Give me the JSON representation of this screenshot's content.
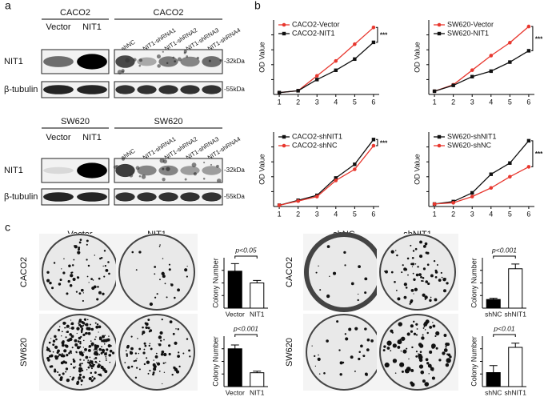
{
  "panel_labels": [
    "a",
    "b",
    "c"
  ],
  "blots": [
    {
      "cell_line": "CACO2",
      "lanes": [
        "Vector",
        "NIT1"
      ]
    },
    {
      "cell_line": "CACO2",
      "lanes": [
        "shNC",
        "NIT1-shRNA1",
        "NIT1-shRNA2",
        "NIT1-shRNA3",
        "NIT1-shRNA4"
      ]
    },
    {
      "cell_line": "SW620",
      "lanes": [
        "Vector",
        "NIT1"
      ]
    },
    {
      "cell_line": "SW620",
      "lanes": [
        "shNC",
        "NIT1-shRNA1",
        "NIT1-shRNA2",
        "NIT1-shRNA3",
        "NIT1-shRNA4"
      ]
    }
  ],
  "blot_rows": [
    "NIT1",
    "β-tubulin"
  ],
  "markers": [
    "-32kDa",
    "-55kDa"
  ],
  "chart_data": [
    {
      "type": "line",
      "ylabel": "OD Value",
      "x": [
        1,
        2,
        3,
        4,
        5,
        6
      ],
      "xticks": [
        1,
        2,
        3,
        4,
        5,
        6
      ],
      "xlim": [
        0.7,
        6.3
      ],
      "ylim": [
        0,
        2
      ],
      "annotation": "***",
      "series": [
        {
          "name": "CACO2-Vector",
          "color": "#e8382f",
          "marker": "circle",
          "values": [
            0.05,
            0.1,
            0.5,
            0.9,
            1.35,
            1.8
          ]
        },
        {
          "name": "CACO2-NIT1",
          "color": "#111111",
          "marker": "square",
          "values": [
            0.05,
            0.1,
            0.4,
            0.65,
            0.95,
            1.4
          ]
        }
      ]
    },
    {
      "type": "line",
      "ylabel": "OD Value",
      "x": [
        1,
        2,
        3,
        4,
        5,
        6
      ],
      "xticks": [
        1,
        2,
        3,
        4,
        5,
        6
      ],
      "xlim": [
        0.7,
        6.3
      ],
      "ylim": [
        0,
        2.3
      ],
      "annotation": "***",
      "series": [
        {
          "name": "SW620-Vector",
          "color": "#e8382f",
          "marker": "circle",
          "values": [
            0.1,
            0.3,
            0.75,
            1.2,
            1.6,
            2.1
          ]
        },
        {
          "name": "SW620-NIT1",
          "color": "#111111",
          "marker": "square",
          "values": [
            0.1,
            0.28,
            0.55,
            0.72,
            1.0,
            1.35
          ]
        }
      ]
    },
    {
      "type": "line",
      "ylabel": "OD Value",
      "x": [
        1,
        2,
        3,
        4,
        5,
        6
      ],
      "xticks": [
        1,
        2,
        3,
        4,
        5,
        6
      ],
      "xlim": [
        0.7,
        6.3
      ],
      "ylim": [
        0,
        3
      ],
      "annotation": "***",
      "series": [
        {
          "name": "CACO2-shNIT1",
          "color": "#111111",
          "marker": "square",
          "values": [
            0.05,
            0.25,
            0.45,
            1.15,
            1.7,
            2.7
          ]
        },
        {
          "name": "CACO2-shNC",
          "color": "#e8382f",
          "marker": "circle",
          "values": [
            0.05,
            0.22,
            0.4,
            1.05,
            1.5,
            2.45
          ]
        }
      ]
    },
    {
      "type": "line",
      "ylabel": "OD Value",
      "x": [
        1,
        2,
        3,
        4,
        5,
        6
      ],
      "xticks": [
        1,
        2,
        3,
        4,
        5,
        6
      ],
      "xlim": [
        0.7,
        6.3
      ],
      "ylim": [
        0,
        3
      ],
      "annotation": "***",
      "series": [
        {
          "name": "SW620-shNIT1",
          "color": "#111111",
          "marker": "square",
          "values": [
            0.1,
            0.2,
            0.55,
            1.3,
            1.75,
            2.65
          ]
        },
        {
          "name": "SW620-shNC",
          "color": "#e8382f",
          "marker": "circle",
          "values": [
            0.1,
            0.15,
            0.4,
            0.75,
            1.2,
            1.6
          ]
        }
      ]
    },
    {
      "type": "bar",
      "ylabel": "Colony Number",
      "categories": [
        "Vector",
        "NIT1"
      ],
      "values": [
        220,
        150
      ],
      "errors": [
        45,
        15
      ],
      "colors": [
        "#000000",
        "#ffffff"
      ],
      "ylim": [
        0,
        300
      ],
      "annotation": "p<0.05"
    },
    {
      "type": "bar",
      "ylabel": "Colony Number",
      "categories": [
        "Vector",
        "NIT1"
      ],
      "values": [
        600,
        220
      ],
      "errors": [
        60,
        25
      ],
      "colors": [
        "#000000",
        "#ffffff"
      ],
      "ylim": [
        0,
        800
      ],
      "annotation": "p<0.001"
    },
    {
      "type": "bar",
      "ylabel": "Colony Number",
      "categories": [
        "shNC",
        "shNIT1"
      ],
      "values": [
        55,
        250
      ],
      "errors": [
        8,
        30
      ],
      "colors": [
        "#000000",
        "#ffffff"
      ],
      "ylim": [
        0,
        320
      ],
      "annotation": "p<0.001"
    },
    {
      "type": "bar",
      "ylabel": "Colony Number",
      "categories": [
        "shNC",
        "shNIT1"
      ],
      "values": [
        500,
        1400
      ],
      "errors": [
        250,
        150
      ],
      "colors": [
        "#000000",
        "#ffffff"
      ],
      "ylim": [
        0,
        1800
      ],
      "annotation": "p<0.01"
    }
  ],
  "dishes": {
    "columns": [
      "Vector",
      "NIT1",
      "shNC",
      "shNIT1"
    ],
    "rows": [
      "CACO2",
      "SW620"
    ]
  }
}
